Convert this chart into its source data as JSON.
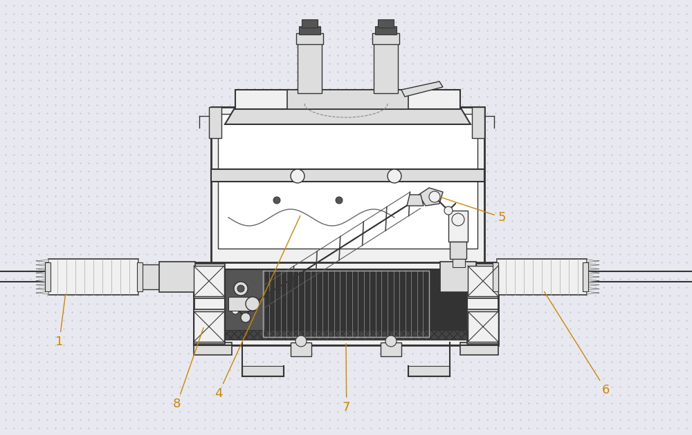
{
  "bg_color": "#e8e8f0",
  "line_color": "#333333",
  "white_fill": "#ffffff",
  "light_fill": "#f0f0f0",
  "med_fill": "#dddddd",
  "dark_fill": "#555555",
  "hatch_fill": "#888888",
  "label_color": "#cc8800",
  "label_fontsize": 13,
  "dot_color": "#c0c0c8"
}
